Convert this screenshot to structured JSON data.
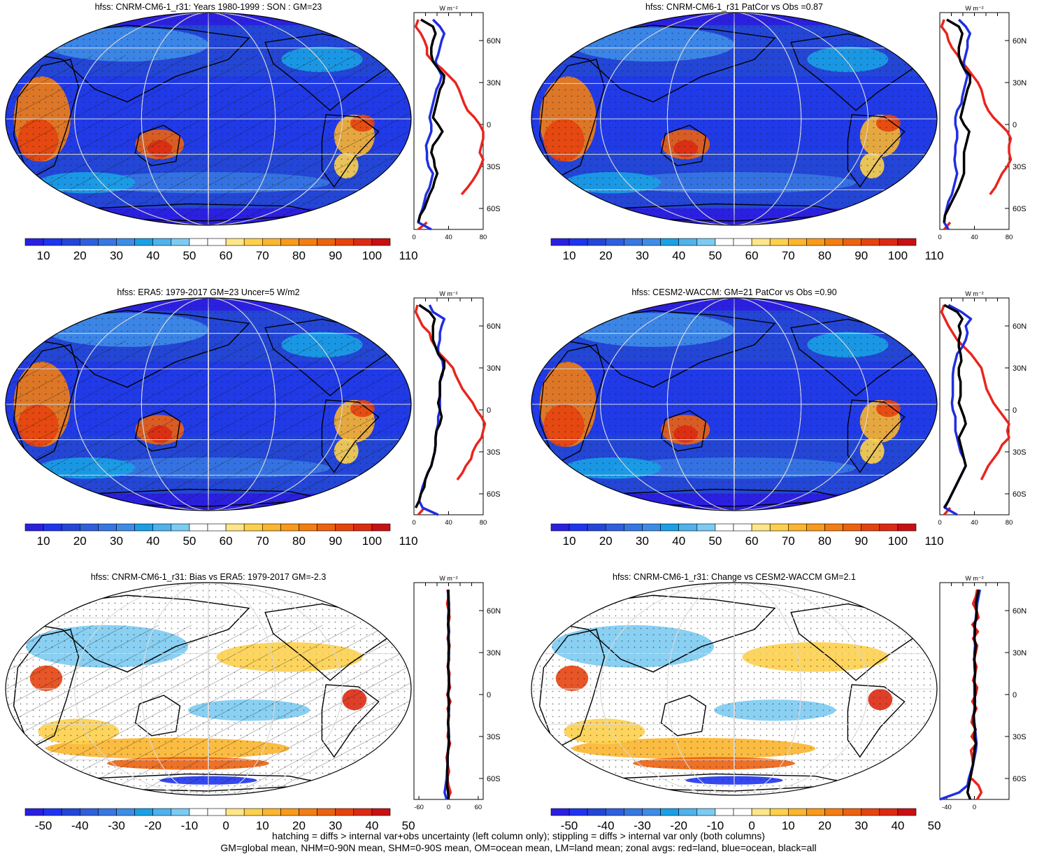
{
  "colors": {
    "ocean_dots": "#1a1a1a",
    "gridline": "#d9d9d9",
    "land_line": "#e8251e",
    "ocean_line": "#1f2fe0",
    "all_line": "#000000"
  },
  "abs_palette": [
    "#2b20e0",
    "#1f34ee",
    "#2346d6",
    "#2f5fdd",
    "#3777e2",
    "#3e8ce8",
    "#1aa0e6",
    "#4fb2ec",
    "#7ccbf2",
    "#ffffff",
    "#ffffff",
    "#fde68a",
    "#fdd04c",
    "#fbb52e",
    "#f99a1b",
    "#f27e12",
    "#ec620f",
    "#e5430e",
    "#dc2a12",
    "#c81013"
  ],
  "abs_ticks": [
    "10",
    "20",
    "30",
    "40",
    "50",
    "60",
    "70",
    "80",
    "90",
    "100",
    "110"
  ],
  "diff_palette": [
    "#2b20e0",
    "#1f34ee",
    "#2346d6",
    "#2f5fdd",
    "#3777e2",
    "#3e8ce8",
    "#1aa0e6",
    "#4fb2ec",
    "#7ccbf2",
    "#ffffff",
    "#ffffff",
    "#fde68a",
    "#fdd04c",
    "#fbb52e",
    "#f99a1b",
    "#f27e12",
    "#ec620f",
    "#e5430e",
    "#dc2a12",
    "#c81013"
  ],
  "diff_ticks": [
    "-50",
    "-40",
    "-30",
    "-20",
    "-10",
    "0",
    "10",
    "20",
    "30",
    "40",
    "50"
  ],
  "lat_ticks": [
    "60N",
    "30N",
    "0",
    "30S",
    "60S"
  ],
  "unit_label": "W m⁻²",
  "panels": [
    {
      "id": "p1",
      "title": "hfss: CNRM-CM6-1_r31: Years 1980-1999 : SON : GM=23",
      "kind": "abs",
      "hatch": true
    },
    {
      "id": "p2",
      "title": "hfss: CNRM-CM6-1_r31 PatCor vs Obs =0.87",
      "kind": "abs",
      "hatch": false
    },
    {
      "id": "p3",
      "title": "hfss: ERA5: 1979-2017 GM=23 Uncer=5 W/m2",
      "kind": "abs",
      "hatch": true
    },
    {
      "id": "p4",
      "title": "hfss: CESM2-WACCM: GM=21 PatCor vs Obs =0.90",
      "kind": "abs",
      "hatch": false
    },
    {
      "id": "p5",
      "title": "hfss: CNRM-CM6-1_r31: Bias vs ERA5: 1979-2017  GM=-2.3",
      "kind": "diff",
      "hatch": true
    },
    {
      "id": "p6",
      "title": "hfss: CNRM-CM6-1_r31: Change vs CESM2-WACCM GM=2.1",
      "kind": "diff",
      "hatch": false
    }
  ],
  "footer": {
    "line1": "hatching = diffs > internal var+obs uncertainty (left column only); stippling = diffs > internal var only (both columns)",
    "line2": "GM=global mean, NHM=0-90N mean, SHM=0-90S mean, OM=ocean mean, LM=land mean; zonal avgs: red=land, blue=ocean, black=all"
  },
  "chart_data": [
    {
      "type": "line",
      "panel": "p1",
      "xlabel": "W m⁻²",
      "xlim": [
        0,
        80
      ],
      "xticks": [
        "0",
        "40",
        "80"
      ],
      "ylim": [
        -75,
        80
      ],
      "y": [
        75,
        70,
        65,
        60,
        55,
        50,
        45,
        40,
        35,
        30,
        25,
        20,
        15,
        10,
        5,
        0,
        -5,
        -10,
        -15,
        -20,
        -25,
        -30,
        -35,
        -40,
        -45,
        -50,
        -55,
        -60,
        -65,
        -70,
        -75
      ],
      "series": [
        {
          "name": "land",
          "color": "red",
          "values": [
            5,
            2,
            8,
            12,
            15,
            15,
            22,
            32,
            40,
            48,
            52,
            55,
            58,
            62,
            70,
            76,
            80,
            80,
            78,
            76,
            80,
            77,
            73,
            68,
            62,
            55,
            null,
            null,
            null,
            15,
            5
          ]
        },
        {
          "name": "ocean",
          "color": "blue",
          "values": [
            22,
            30,
            35,
            32,
            30,
            28,
            25,
            28,
            32,
            30,
            26,
            24,
            22,
            20,
            18,
            20,
            20,
            17,
            14,
            15,
            15,
            17,
            22,
            20,
            18,
            14,
            12,
            10,
            7,
            5,
            20
          ]
        },
        {
          "name": "all",
          "color": "black",
          "values": [
            8,
            22,
            25,
            22,
            20,
            20,
            22,
            28,
            35,
            34,
            30,
            28,
            26,
            24,
            22,
            28,
            33,
            28,
            22,
            20,
            23,
            24,
            27,
            24,
            22,
            18,
            15,
            12,
            7,
            5,
            null
          ]
        }
      ]
    },
    {
      "type": "line",
      "panel": "p2",
      "xlabel": "W m⁻²",
      "xlim": [
        0,
        80
      ],
      "xticks": [
        "0",
        "40",
        "80"
      ],
      "ylim": [
        -75,
        80
      ],
      "y": [
        75,
        70,
        65,
        60,
        55,
        50,
        45,
        40,
        35,
        30,
        25,
        20,
        15,
        10,
        5,
        0,
        -5,
        -10,
        -15,
        -20,
        -25,
        -30,
        -35,
        -40,
        -45,
        -50,
        -55,
        -60,
        -65,
        -70,
        -75
      ],
      "series": [
        {
          "name": "land",
          "color": "red",
          "values": [
            5,
            2,
            8,
            10,
            14,
            20,
            25,
            32,
            38,
            44,
            48,
            50,
            52,
            56,
            62,
            70,
            78,
            82,
            80,
            80,
            82,
            78,
            72,
            68,
            64,
            58,
            null,
            null,
            null,
            12,
            5
          ]
        },
        {
          "name": "ocean",
          "color": "blue",
          "values": [
            22,
            30,
            35,
            32,
            32,
            30,
            28,
            28,
            32,
            30,
            28,
            26,
            25,
            20,
            18,
            18,
            20,
            20,
            18,
            18,
            17,
            18,
            20,
            18,
            16,
            14,
            10,
            8,
            6,
            5,
            10
          ]
        },
        {
          "name": "all",
          "color": "black",
          "values": [
            8,
            22,
            26,
            24,
            22,
            22,
            24,
            28,
            35,
            35,
            32,
            30,
            28,
            26,
            24,
            28,
            34,
            32,
            30,
            28,
            28,
            28,
            28,
            25,
            22,
            18,
            14,
            10,
            6,
            5,
            null
          ]
        }
      ]
    },
    {
      "type": "line",
      "panel": "p3",
      "xlabel": "W m⁻²",
      "xlim": [
        0,
        80
      ],
      "xticks": [
        "0",
        "40",
        "80"
      ],
      "ylim": [
        -75,
        80
      ],
      "y": [
        75,
        70,
        65,
        60,
        55,
        50,
        45,
        40,
        35,
        30,
        25,
        20,
        15,
        10,
        5,
        0,
        -5,
        -10,
        -15,
        -20,
        -25,
        -30,
        -35,
        -40,
        -45,
        -50,
        -55,
        -60,
        -65,
        -70,
        -75
      ],
      "series": [
        {
          "name": "land",
          "color": "red",
          "values": [
            4,
            2,
            6,
            10,
            18,
            20,
            25,
            30,
            38,
            45,
            48,
            52,
            56,
            62,
            68,
            72,
            78,
            82,
            80,
            78,
            72,
            68,
            66,
            60,
            56,
            50,
            null,
            null,
            null,
            12,
            5
          ]
        },
        {
          "name": "ocean",
          "color": "blue",
          "values": [
            18,
            22,
            35,
            32,
            30,
            30,
            28,
            28,
            33,
            34,
            33,
            30,
            30,
            30,
            30,
            30,
            28,
            28,
            26,
            25,
            25,
            24,
            22,
            20,
            16,
            13,
            10,
            8,
            6,
            10,
            28
          ]
        },
        {
          "name": "all",
          "color": "black",
          "values": [
            6,
            18,
            24,
            22,
            22,
            22,
            25,
            28,
            35,
            35,
            32,
            30,
            30,
            30,
            28,
            30,
            32,
            30,
            26,
            25,
            25,
            24,
            22,
            20,
            16,
            13,
            12,
            8,
            6,
            2,
            null
          ]
        }
      ]
    },
    {
      "type": "line",
      "panel": "p4",
      "xlabel": "W m⁻²",
      "xlim": [
        0,
        80
      ],
      "xticks": [
        "0",
        "40",
        "80"
      ],
      "ylim": [
        -75,
        80
      ],
      "y": [
        75,
        70,
        65,
        60,
        55,
        50,
        45,
        40,
        35,
        30,
        25,
        20,
        15,
        10,
        5,
        0,
        -5,
        -10,
        -15,
        -20,
        -25,
        -30,
        -35,
        -40,
        -45,
        -50,
        -55,
        -60,
        -65,
        -70,
        -75
      ],
      "series": [
        {
          "name": "land",
          "color": "red",
          "values": [
            5,
            2,
            6,
            10,
            15,
            20,
            28,
            36,
            42,
            48,
            50,
            52,
            54,
            58,
            62,
            68,
            74,
            80,
            78,
            80,
            72,
            68,
            62,
            56,
            52,
            48,
            null,
            null,
            null,
            12,
            5
          ]
        },
        {
          "name": "ocean",
          "color": "blue",
          "values": [
            10,
            25,
            36,
            30,
            32,
            30,
            26,
            20,
            18,
            16,
            15,
            15,
            15,
            15,
            14,
            15,
            18,
            18,
            18,
            20,
            22,
            24,
            28,
            30,
            26,
            22,
            18,
            14,
            10,
            6,
            20
          ]
        },
        {
          "name": "all",
          "color": "black",
          "values": [
            5,
            20,
            26,
            22,
            24,
            22,
            22,
            24,
            25,
            22,
            22,
            24,
            24,
            24,
            22,
            25,
            28,
            30,
            26,
            22,
            24,
            26,
            28,
            30,
            26,
            22,
            18,
            14,
            10,
            5,
            null
          ]
        }
      ]
    },
    {
      "type": "line",
      "panel": "p5",
      "xlabel": "W m⁻²",
      "xlim": [
        -70,
        70
      ],
      "xticks": [
        "-60",
        "0",
        "60"
      ],
      "ylim": [
        -75,
        80
      ],
      "y": [
        75,
        70,
        65,
        60,
        55,
        50,
        45,
        40,
        35,
        30,
        25,
        20,
        15,
        10,
        5,
        0,
        -5,
        -10,
        -15,
        -20,
        -25,
        -30,
        -35,
        -40,
        -45,
        -50,
        -55,
        -60,
        -65,
        -70,
        -75
      ],
      "series": [
        {
          "name": "land",
          "color": "red",
          "values": [
            -2,
            0,
            -3,
            0,
            2,
            -1,
            1,
            -2,
            2,
            0,
            1,
            -2,
            2,
            0,
            3,
            -3,
            4,
            -2,
            1,
            -1,
            0,
            -2,
            3,
            -1,
            -4,
            -2,
            1,
            -3,
            0,
            4,
            -2
          ]
        },
        {
          "name": "ocean",
          "color": "blue",
          "values": [
            0,
            -1,
            1,
            0,
            -1,
            0,
            1,
            -1,
            0,
            1,
            0,
            -1,
            0,
            1,
            0,
            -1,
            0,
            1,
            0,
            -1,
            0,
            1,
            0,
            -1,
            -2,
            -2,
            -3,
            -4,
            -6,
            -8,
            -4
          ]
        },
        {
          "name": "all",
          "color": "black",
          "values": [
            -1,
            0,
            0,
            1,
            0,
            -1,
            0,
            0,
            1,
            0,
            0,
            -1,
            0,
            1,
            1,
            -1,
            1,
            0,
            0,
            -1,
            0,
            0,
            1,
            -1,
            -2,
            -2,
            -3,
            -2,
            -3,
            -1,
            0
          ]
        }
      ]
    },
    {
      "type": "line",
      "panel": "p6",
      "xlabel": "W m⁻²",
      "xlim": [
        -50,
        50
      ],
      "xticks": [
        "-40",
        "0"
      ],
      "ylim": [
        -75,
        80
      ],
      "y": [
        75,
        70,
        65,
        60,
        55,
        50,
        45,
        40,
        35,
        30,
        25,
        20,
        15,
        10,
        5,
        0,
        -5,
        -10,
        -15,
        -20,
        -25,
        -30,
        -35,
        -40,
        -45,
        -50,
        -55,
        -60,
        -65,
        -70,
        -75
      ],
      "series": [
        {
          "name": "land",
          "color": "red",
          "values": [
            4,
            2,
            -2,
            3,
            6,
            -3,
            5,
            -2,
            4,
            2,
            -1,
            3,
            1,
            -2,
            4,
            2,
            -3,
            3,
            -2,
            -4,
            2,
            -4,
            3,
            -5,
            -3,
            -2,
            null,
            -4,
            6,
            10,
            4
          ]
        },
        {
          "name": "ocean",
          "color": "blue",
          "values": [
            8,
            6,
            4,
            3,
            2,
            1,
            0,
            0,
            1,
            0,
            0,
            0,
            1,
            0,
            0,
            0,
            1,
            0,
            -1,
            0,
            1,
            2,
            3,
            2,
            0,
            -2,
            -5,
            -8,
            -10,
            -22,
            -50
          ]
        },
        {
          "name": "all",
          "color": "black",
          "values": [
            6,
            4,
            2,
            3,
            3,
            0,
            1,
            0,
            2,
            1,
            0,
            1,
            1,
            0,
            1,
            1,
            0,
            1,
            -1,
            -1,
            1,
            0,
            2,
            0,
            -1,
            -2,
            -4,
            -6,
            -8,
            -10,
            -6
          ]
        }
      ]
    }
  ]
}
